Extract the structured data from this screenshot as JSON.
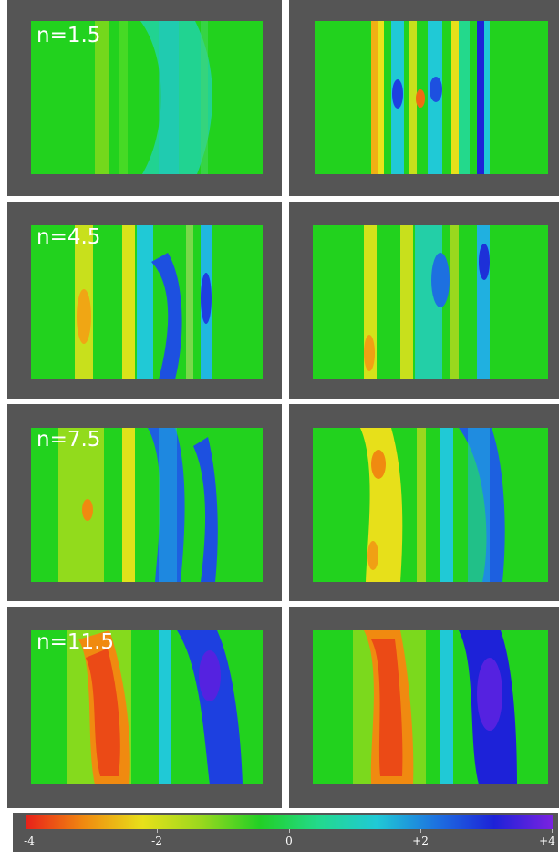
{
  "panels": [
    {
      "label": "n=1.5"
    },
    {
      "label": ""
    },
    {
      "label": "n=4.5"
    },
    {
      "label": ""
    },
    {
      "label": "n=7.5"
    },
    {
      "label": ""
    },
    {
      "label": "n=11.5"
    },
    {
      "label": ""
    }
  ],
  "colorbar": {
    "ticks": [
      "-4",
      "-2",
      "0",
      "+2",
      "+4"
    ],
    "colors": [
      "#e8201a",
      "#f08a10",
      "#e7e01a",
      "#9ad81e",
      "#22cf25",
      "#23d98c",
      "#20c9d6",
      "#1d73e0",
      "#1d22d8",
      "#7a22e0"
    ]
  },
  "colors": {
    "frame": "#555555",
    "field": "#22d21e"
  }
}
